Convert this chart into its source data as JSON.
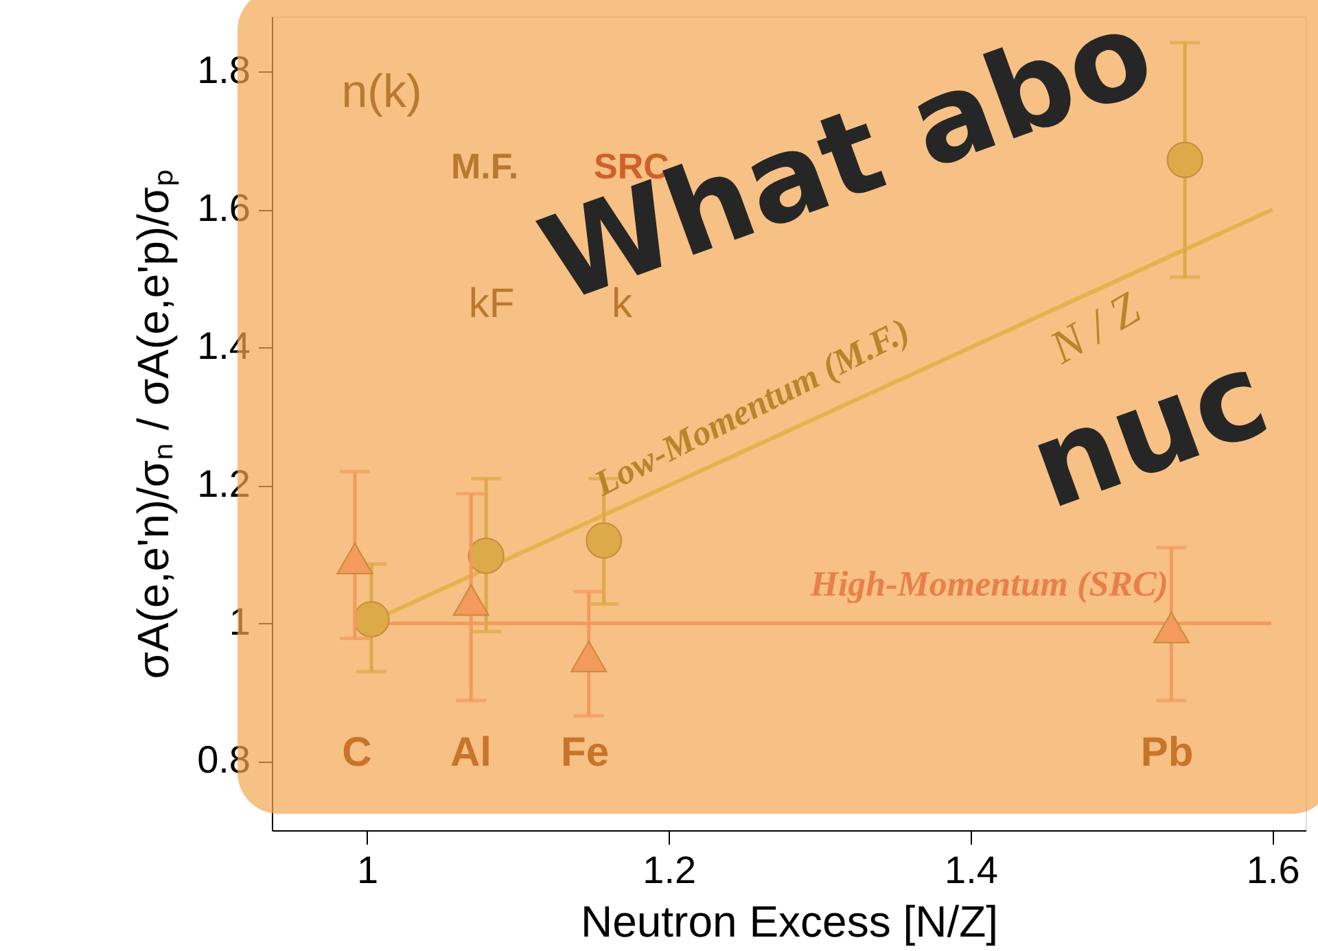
{
  "chart_data": {
    "type": "scatter",
    "xlabel": "Neutron Excess [N/Z]",
    "ylabel": "σA(e,e'n)/σₙ / σA(e,e'p)/σₚ",
    "xlim": [
      0.937,
      1.622
    ],
    "xticks": [
      1,
      1.2,
      1.4,
      1.6
    ],
    "ylim": [
      0.7,
      1.88
    ],
    "yticks": [
      0.8,
      1,
      1.2,
      1.4,
      1.6,
      1.8
    ],
    "grid": false,
    "series": [
      {
        "type": "line",
        "color": "#e6b24e",
        "x": [
          1.0,
          1.6
        ],
        "values": [
          1.0,
          1.6
        ],
        "line_style": "solid"
      },
      {
        "color": "#dcaa48",
        "marker": "circle",
        "x": [
          1.003,
          1.079,
          1.157,
          1.542
        ],
        "values": [
          1.006,
          1.098,
          1.12,
          1.672
        ],
        "errors": [
          [
            0.93,
            1.086
          ],
          [
            0.988,
            1.21
          ],
          [
            1.028,
            1.21
          ],
          [
            1.502,
            1.842
          ]
        ]
      },
      {
        "color": "#f39a5c",
        "marker": "triangle",
        "x": [
          0.992,
          1.069,
          1.147,
          1.533
        ],
        "values": [
          1.094,
          1.034,
          0.952,
          0.994
        ],
        "errors": [
          [
            0.978,
            1.22
          ],
          [
            0.888,
            1.188
          ],
          [
            0.866,
            1.046
          ],
          [
            0.888,
            1.11
          ]
        ]
      }
    ],
    "ref_lines": [
      {
        "axis": "y",
        "value": 1,
        "label": "High-Momentum (SRC)",
        "color": "#f39a5c",
        "line_style": "solid"
      }
    ],
    "annotations": [
      "Low-Momentum (M.F.)",
      "N / Z",
      "C",
      "Al",
      "Fe",
      "Pb",
      "n(k)",
      "M.F.",
      "SRC",
      "kF",
      "k",
      "What abo",
      "nuc"
    ]
  }
}
